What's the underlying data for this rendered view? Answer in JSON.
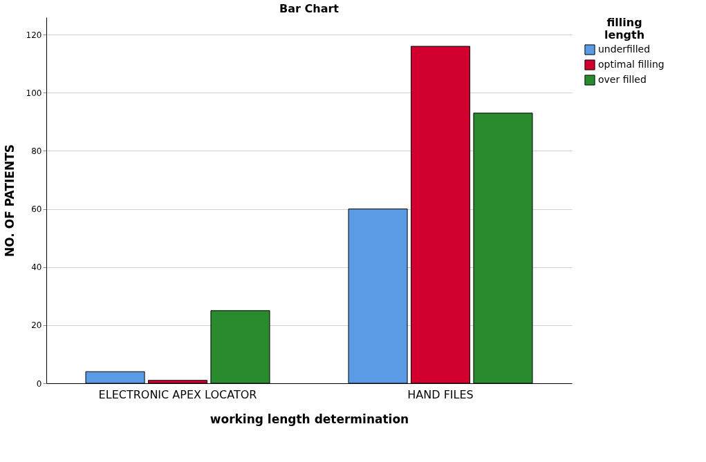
{
  "chart_data": {
    "type": "bar",
    "title": "Bar Chart",
    "xlabel": "working length determination",
    "ylabel": "NO. OF PATIENTS",
    "legend_title": "filling length",
    "categories": [
      "ELECTRONIC APEX LOCATOR",
      "HAND FILES"
    ],
    "series": [
      {
        "name": "underfilled",
        "color": "#5b9be6",
        "values": [
          4,
          60
        ]
      },
      {
        "name": "optimal filling",
        "color": "#d2002e",
        "values": [
          1,
          116
        ]
      },
      {
        "name": "over filled",
        "color": "#2a8a2e",
        "values": [
          25,
          93
        ]
      }
    ],
    "ylim": [
      0,
      126
    ],
    "yticks": [
      0,
      20,
      40,
      60,
      80,
      100,
      120
    ],
    "grid": "y",
    "legend": "top right"
  }
}
